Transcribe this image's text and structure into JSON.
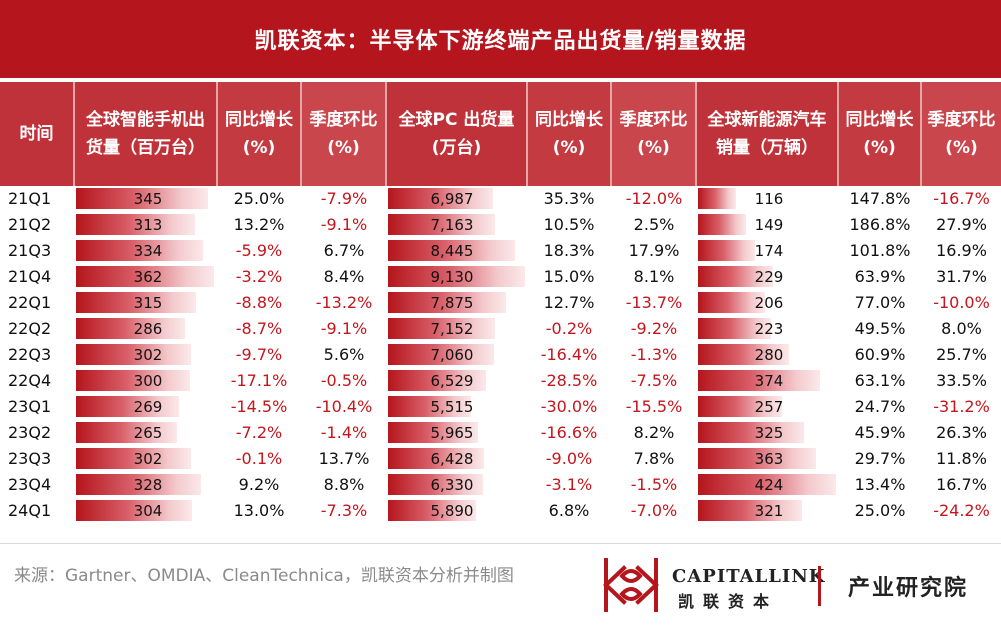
{
  "title": "凯联资本：半导体下游终端产品出货量/销量数据",
  "headers": {
    "period": "时间",
    "phone_line1": "全球智能手机出",
    "phone_line2": "货量（百万台）",
    "yoy1_line1": "同比增长",
    "yoy1_line2": "(%)",
    "qoq1_line1": "季度环比",
    "qoq1_line2": "(%)",
    "pc_line1": "全球PC 出货量",
    "pc_line2": "(万台)",
    "yoy2_line1": "同比增长",
    "yoy2_line2": "(%)",
    "qoq2_line1": "季度环比",
    "qoq2_line2": "(%)",
    "ev_line1": "全球新能源汽车",
    "ev_line2": "销量（万辆）",
    "yoy3_line1": "同比增长",
    "yoy3_line2": "(%)",
    "qoq3_line1": "季度环比",
    "qoq3_line2": "(%)"
  },
  "chart_data": {
    "type": "table",
    "columns": [
      "时间",
      "全球智能手机出货量（百万台）",
      "同比增长(%)",
      "季度环比(%)",
      "全球PC 出货量(万台)",
      "同比增长(%)",
      "季度环比(%)",
      "全球新能源汽车销量（万辆）",
      "同比增长(%)",
      "季度环比(%)"
    ],
    "rows": [
      {
        "period": "21Q1",
        "phone": 345,
        "phone_label": "345",
        "phone_yoy": "25.0%",
        "phone_qoq": "-7.9%",
        "pc": 6987,
        "pc_label": "6,987",
        "pc_yoy": "35.3%",
        "pc_qoq": "-12.0%",
        "ev": 116,
        "ev_label": "116",
        "ev_yoy": "147.8%",
        "ev_qoq": "-16.7%"
      },
      {
        "period": "21Q2",
        "phone": 313,
        "phone_label": "313",
        "phone_yoy": "13.2%",
        "phone_qoq": "-9.1%",
        "pc": 7163,
        "pc_label": "7,163",
        "pc_yoy": "10.5%",
        "pc_qoq": "2.5%",
        "ev": 149,
        "ev_label": "149",
        "ev_yoy": "186.8%",
        "ev_qoq": "27.9%"
      },
      {
        "period": "21Q3",
        "phone": 334,
        "phone_label": "334",
        "phone_yoy": "-5.9%",
        "phone_qoq": "6.7%",
        "pc": 8445,
        "pc_label": "8,445",
        "pc_yoy": "18.3%",
        "pc_qoq": "17.9%",
        "ev": 174,
        "ev_label": "174",
        "ev_yoy": "101.8%",
        "ev_qoq": "16.9%"
      },
      {
        "period": "21Q4",
        "phone": 362,
        "phone_label": "362",
        "phone_yoy": "-3.2%",
        "phone_qoq": "8.4%",
        "pc": 9130,
        "pc_label": "9,130",
        "pc_yoy": "15.0%",
        "pc_qoq": "8.1%",
        "ev": 229,
        "ev_label": "229",
        "ev_yoy": "63.9%",
        "ev_qoq": "31.7%"
      },
      {
        "period": "22Q1",
        "phone": 315,
        "phone_label": "315",
        "phone_yoy": "-8.8%",
        "phone_qoq": "-13.2%",
        "pc": 7875,
        "pc_label": "7,875",
        "pc_yoy": "12.7%",
        "pc_qoq": "-13.7%",
        "ev": 206,
        "ev_label": "206",
        "ev_yoy": "77.0%",
        "ev_qoq": "-10.0%"
      },
      {
        "period": "22Q2",
        "phone": 286,
        "phone_label": "286",
        "phone_yoy": "-8.7%",
        "phone_qoq": "-9.1%",
        "pc": 7152,
        "pc_label": "7,152",
        "pc_yoy": "-0.2%",
        "pc_qoq": "-9.2%",
        "ev": 223,
        "ev_label": "223",
        "ev_yoy": "49.5%",
        "ev_qoq": "8.0%"
      },
      {
        "period": "22Q3",
        "phone": 302,
        "phone_label": "302",
        "phone_yoy": "-9.7%",
        "phone_qoq": "5.6%",
        "pc": 7060,
        "pc_label": "7,060",
        "pc_yoy": "-16.4%",
        "pc_qoq": "-1.3%",
        "ev": 280,
        "ev_label": "280",
        "ev_yoy": "60.9%",
        "ev_qoq": "25.7%"
      },
      {
        "period": "22Q4",
        "phone": 300,
        "phone_label": "300",
        "phone_yoy": "-17.1%",
        "phone_qoq": "-0.5%",
        "pc": 6529,
        "pc_label": "6,529",
        "pc_yoy": "-28.5%",
        "pc_qoq": "-7.5%",
        "ev": 374,
        "ev_label": "374",
        "ev_yoy": "63.1%",
        "ev_qoq": "33.5%"
      },
      {
        "period": "23Q1",
        "phone": 269,
        "phone_label": "269",
        "phone_yoy": "-14.5%",
        "phone_qoq": "-10.4%",
        "pc": 5515,
        "pc_label": "5,515",
        "pc_yoy": "-30.0%",
        "pc_qoq": "-15.5%",
        "ev": 257,
        "ev_label": "257",
        "ev_yoy": "24.7%",
        "ev_qoq": "-31.2%"
      },
      {
        "period": "23Q2",
        "phone": 265,
        "phone_label": "265",
        "phone_yoy": "-7.2%",
        "phone_qoq": "-1.4%",
        "pc": 5965,
        "pc_label": "5,965",
        "pc_yoy": "-16.6%",
        "pc_qoq": "8.2%",
        "ev": 325,
        "ev_label": "325",
        "ev_yoy": "45.9%",
        "ev_qoq": "26.3%"
      },
      {
        "period": "23Q3",
        "phone": 302,
        "phone_label": "302",
        "phone_yoy": "-0.1%",
        "phone_qoq": "13.7%",
        "pc": 6428,
        "pc_label": "6,428",
        "pc_yoy": "-9.0%",
        "pc_qoq": "7.8%",
        "ev": 363,
        "ev_label": "363",
        "ev_yoy": "29.7%",
        "ev_qoq": "11.8%"
      },
      {
        "period": "23Q4",
        "phone": 328,
        "phone_label": "328",
        "phone_yoy": "9.2%",
        "phone_qoq": "8.8%",
        "pc": 6330,
        "pc_label": "6,330",
        "pc_yoy": "-3.1%",
        "pc_qoq": "-1.5%",
        "ev": 424,
        "ev_label": "424",
        "ev_yoy": "13.4%",
        "ev_qoq": "16.7%"
      },
      {
        "period": "24Q1",
        "phone": 304,
        "phone_label": "304",
        "phone_yoy": "13.0%",
        "phone_qoq": "-7.3%",
        "pc": 5890,
        "pc_label": "5,890",
        "pc_yoy": "6.8%",
        "pc_qoq": "-7.0%",
        "ev": 321,
        "ev_label": "321",
        "ev_yoy": "25.0%",
        "ev_qoq": "-24.2%"
      }
    ]
  },
  "footer": {
    "source": "来源：Gartner、OMDIA、CleanTechnica，凯联资本分析并制图",
    "brand_en": "CAPITALLINK",
    "brand_cn": "凯联资本",
    "institute": "产业研究院"
  },
  "colors": {
    "brand_red": "#b5151c",
    "negative_text": "#c3161d"
  }
}
